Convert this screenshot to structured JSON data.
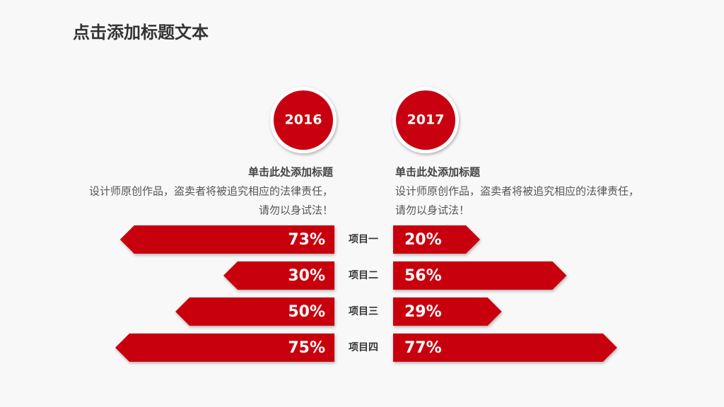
{
  "chart_data": {
    "type": "butterfly-bar",
    "title": "点击添加标题文本",
    "categories": [
      "项目一",
      "项目二",
      "项目三",
      "项目四"
    ],
    "series": [
      {
        "name": "2016",
        "color": "#c8000f",
        "values": [
          73,
          30,
          50,
          75
        ],
        "value_labels": [
          "73%",
          "30%",
          "50%",
          "75%"
        ]
      },
      {
        "name": "2017",
        "color": "#c8000f",
        "values": [
          20,
          56,
          29,
          77
        ],
        "value_labels": [
          "20%",
          "56%",
          "29%",
          "77%"
        ]
      }
    ],
    "annotations": [
      {
        "heading": "单击此处添加标题",
        "lines": [
          "设计师原创作品，盗卖者将被追究相应的法律责任，",
          "请勿以身试法！"
        ]
      },
      {
        "heading": "单击此处添加标题",
        "lines": [
          "设计师原创作品，盗卖者将被追究相应的法律责任，",
          "请勿以身试法！"
        ]
      }
    ]
  }
}
